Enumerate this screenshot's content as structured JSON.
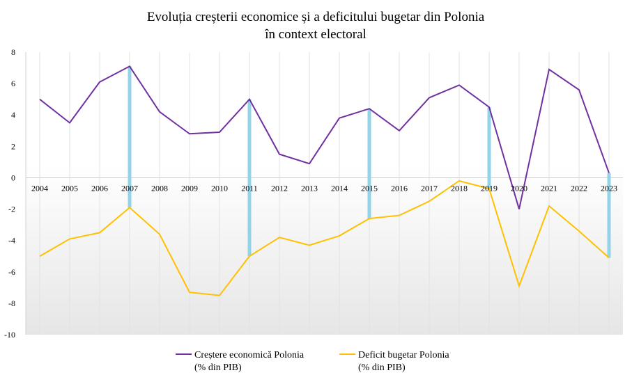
{
  "chart_data": {
    "type": "line",
    "title_line1": "Evoluția creșterii economice și a deficitului bugetar din Polonia",
    "title_line2": "în context electoral",
    "categories": [
      "2004",
      "2005",
      "2006",
      "2007",
      "2008",
      "2009",
      "2010",
      "2011",
      "2012",
      "2013",
      "2014",
      "2015",
      "2016",
      "2017",
      "2018",
      "2019",
      "2020",
      "2021",
      "2022",
      "2023"
    ],
    "ylim": [
      -10,
      8
    ],
    "yticks": [
      8,
      6,
      4,
      2,
      0,
      -2,
      -4,
      -6,
      -8,
      -10
    ],
    "grid": "vertical",
    "legend_position": "bottom",
    "series": [
      {
        "key": "growth",
        "name_line1": "Creștere economică Polonia",
        "name_line2": "(% din PIB)",
        "color": "#7030a0",
        "values": [
          5.0,
          3.5,
          6.1,
          7.1,
          4.2,
          2.8,
          2.9,
          5.0,
          1.5,
          0.9,
          3.8,
          4.4,
          3.0,
          5.1,
          5.9,
          4.5,
          -2.0,
          6.9,
          5.6,
          0.3
        ]
      },
      {
        "key": "deficit",
        "name_line1": "Deficit bugetar Polonia",
        "name_line2": "(% din PIB)",
        "color": "#ffc000",
        "values": [
          -5.0,
          -3.9,
          -3.5,
          -1.9,
          -3.6,
          -7.3,
          -7.5,
          -5.0,
          -3.8,
          -4.3,
          -3.7,
          -2.6,
          -2.4,
          -1.5,
          -0.2,
          -0.7,
          -6.9,
          -1.8,
          -3.4,
          -5.1
        ]
      }
    ],
    "election_markers": {
      "color": "#93d3e8",
      "years": [
        "2007",
        "2011",
        "2015",
        "2019",
        "2023"
      ]
    }
  }
}
